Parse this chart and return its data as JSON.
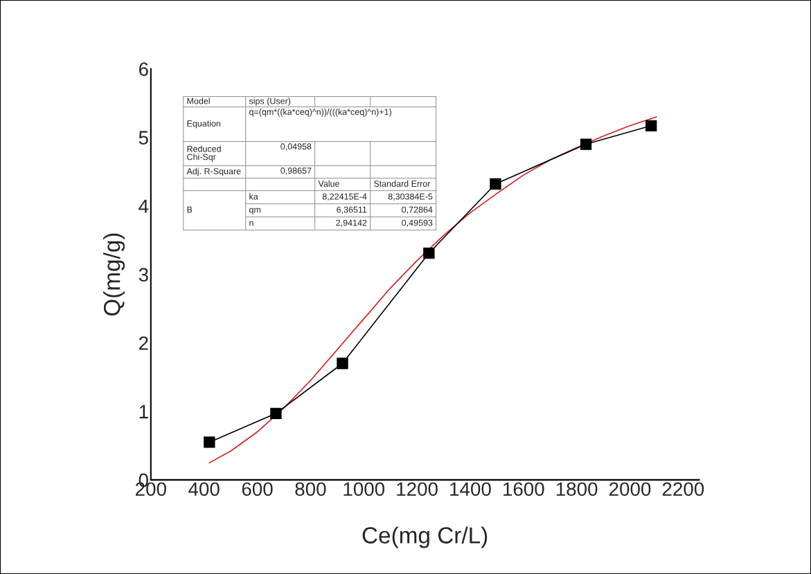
{
  "chart_data": {
    "type": "line",
    "xlabel": "Ce(mg Cr/L)",
    "ylabel": "Q(mg/g)",
    "xlim": [
      200,
      2260
    ],
    "xticks": [
      200,
      400,
      600,
      800,
      1000,
      1200,
      1400,
      1600,
      1800,
      2000,
      2200
    ],
    "ylim": [
      0,
      6
    ],
    "yticks": [
      0,
      1,
      2,
      3,
      4,
      5,
      6
    ],
    "grid": false,
    "series": [
      {
        "color": "#000000",
        "marker": "square",
        "x": [
          420,
          670,
          920,
          1245,
          1495,
          1835,
          2080
        ],
        "values": [
          0.55,
          0.97,
          1.7,
          3.31,
          4.32,
          4.9,
          5.17
        ]
      },
      {
        "color": "#cc2222",
        "marker": "none",
        "x": [
          420,
          500,
          600,
          700,
          800,
          900,
          1000,
          1100,
          1200,
          1300,
          1400,
          1500,
          1600,
          1700,
          1800,
          1900,
          2000,
          2100
        ],
        "values": [
          0.25,
          0.42,
          0.7,
          1.05,
          1.45,
          1.9,
          2.35,
          2.8,
          3.2,
          3.57,
          3.9,
          4.18,
          4.45,
          4.67,
          4.85,
          5.02,
          5.17,
          5.3
        ]
      }
    ],
    "annotations": [
      "Model",
      "sips (User)",
      "Equation",
      "q=(qm*((ka*ceq)^n))/(((ka*ceq)^n)+1)",
      "Reduced\nChi-Sqr",
      "0,04958",
      "Adj. R-Square",
      "0,98657",
      "Value",
      "Standard Error",
      "ka",
      "8,22415E-4",
      "8,30384E-5",
      "B",
      "qm",
      "6,36511",
      "0,72864",
      "n",
      "2,94142",
      "0,49593"
    ]
  }
}
